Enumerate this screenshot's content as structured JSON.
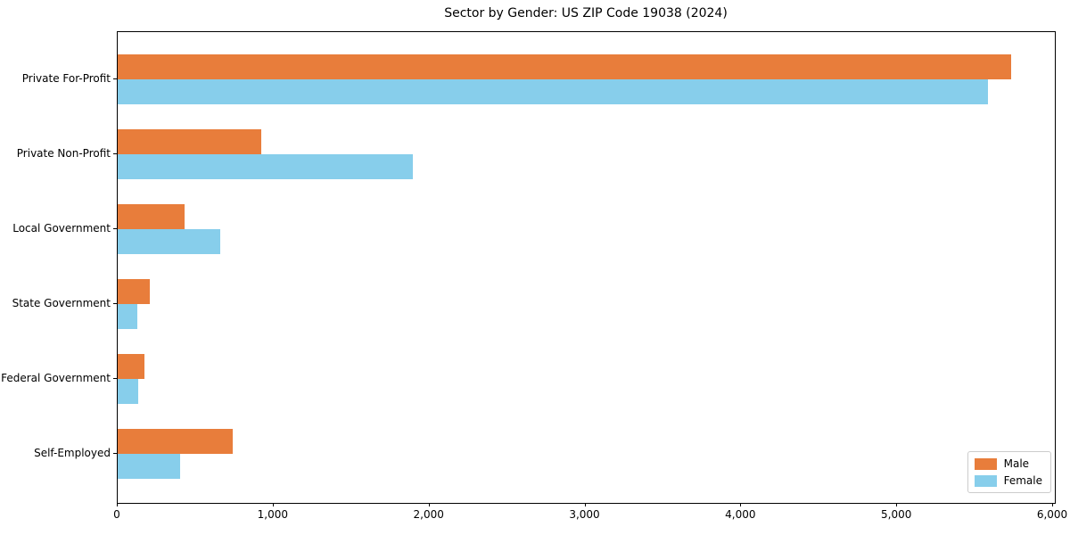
{
  "chart_data": {
    "type": "bar",
    "orientation": "horizontal",
    "title": "Sector by Gender: US ZIP Code 19038 (2024)",
    "categories": [
      "Private For-Profit",
      "Private Non-Profit",
      "Local Government",
      "State Government",
      "Federal Government",
      "Self-Employed"
    ],
    "series": [
      {
        "name": "Male",
        "color": "#e87d3b",
        "values": [
          5730,
          920,
          430,
          205,
          170,
          740
        ]
      },
      {
        "name": "Female",
        "color": "#87ceeb",
        "values": [
          5580,
          1895,
          660,
          125,
          130,
          400
        ]
      }
    ],
    "xlabel": "",
    "ylabel": "",
    "xlim": [
      0,
      6000
    ],
    "xticks": [
      "0",
      "1,000",
      "2,000",
      "3,000",
      "4,000",
      "5,000",
      "6,000"
    ],
    "grid": false,
    "legend_position": "lower right"
  }
}
